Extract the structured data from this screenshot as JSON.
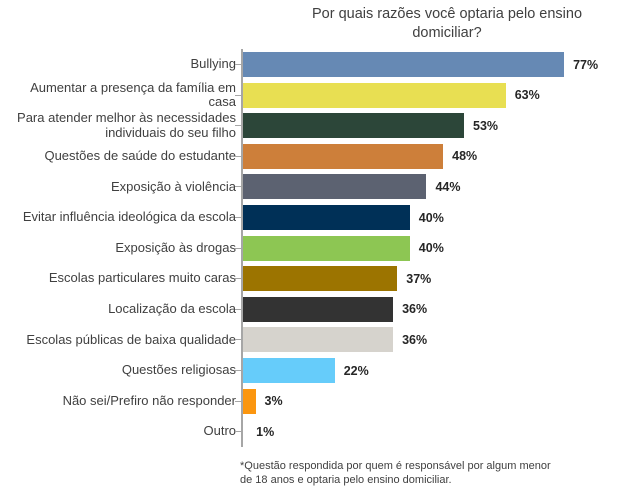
{
  "chart_data": {
    "type": "bar",
    "orientation": "horizontal",
    "title": "Por quais razões você optaria pelo ensino domiciliar?",
    "categories": [
      "Bullying",
      "Aumentar a presença da família em casa",
      "Para atender melhor às necessidades individuais do seu filho",
      "Questões de saúde do estudante",
      "Exposição à violência",
      "Evitar influência ideológica da escola",
      "Exposição às drogas",
      "Escolas particulares muito caras",
      "Localização da escola",
      "Escolas públicas de baixa qualidade",
      "Questões religiosas",
      "Não sei/Prefiro não responder",
      "Outro"
    ],
    "values": [
      77,
      63,
      53,
      48,
      44,
      40,
      40,
      37,
      36,
      36,
      22,
      3,
      1
    ],
    "value_labels": [
      "77%",
      "63%",
      "53%",
      "48%",
      "44%",
      "40%",
      "40%",
      "37%",
      "36%",
      "36%",
      "22%",
      "3%",
      "1%"
    ],
    "colors": [
      "#6689b4",
      "#e8df52",
      "#2c4639",
      "#cd7f3a",
      "#5c6271",
      "#003057",
      "#8dc653",
      "#9c7400",
      "#333333",
      "#d6d3cd",
      "#66ccfa",
      "#fb960f",
      "#ffffff"
    ],
    "unit": "%",
    "xlim": [
      0,
      100
    ],
    "grid": false,
    "legend": false,
    "axis_color": "#a6a6a6",
    "label_color": "#404040",
    "value_label_color": "#262626"
  },
  "footnote": {
    "line1": "*Questão respondida por quem é responsável por algum menor",
    "line2": "de 18 anos e optaria pelo ensino domiciliar."
  }
}
